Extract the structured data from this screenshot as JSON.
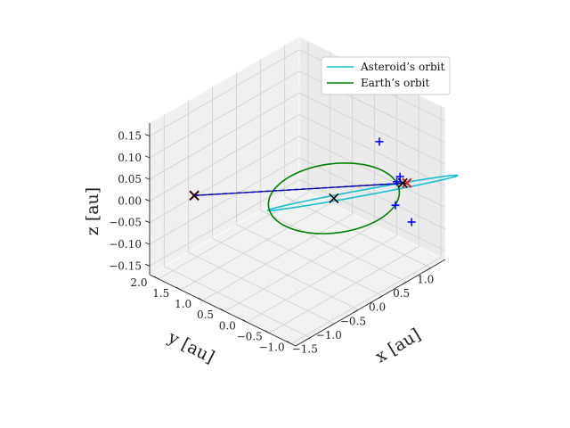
{
  "chart_data": {
    "type": "line3d",
    "title": "",
    "xlabel": "x [au]",
    "ylabel": "y [au]",
    "zlabel": "z [au]",
    "xlim": [
      -1.8,
      1.3
    ],
    "ylim": [
      -1.1,
      2.2
    ],
    "zlim": [
      -0.17,
      0.18
    ],
    "xticks": [
      "−1.5",
      "−1.0",
      "−0.5",
      "0.0",
      "0.5",
      "1.0"
    ],
    "yticks": [
      "−1.0",
      "−0.5",
      "0.0",
      "0.5",
      "1.0",
      "1.5",
      "2.0"
    ],
    "zticks": [
      "−0.15",
      "−0.10",
      "−0.05",
      "0.00",
      "0.05",
      "0.10",
      "0.15"
    ],
    "xtick_values": [
      -1.5,
      -1.0,
      -0.5,
      0.0,
      0.5,
      1.0
    ],
    "ytick_values": [
      -1.0,
      -0.5,
      0.0,
      0.5,
      1.0,
      1.5,
      2.0
    ],
    "ztick_values": [
      -0.15,
      -0.1,
      -0.05,
      0.0,
      0.05,
      0.1,
      0.15
    ],
    "grid": true,
    "legend_position": "upper-right",
    "series": [
      {
        "name": "Asteroid’s orbit",
        "kind": "ellipse",
        "color": "#17becf",
        "semi_major_axis": 1.45,
        "eccentricity": 0.31,
        "inclination_deg": 4.4,
        "perihelion_longitude_deg": 148
      },
      {
        "name": "Earth’s orbit",
        "kind": "circle",
        "color": "#008000",
        "radius": 1.0,
        "inclination_deg": 0
      }
    ],
    "line_of_nodes": {
      "color": "#0000ff",
      "style": "dashed",
      "from": [
        -1.27,
        1.77,
        0.0
      ],
      "to": [
        0.99,
        -0.57,
        0.0
      ]
    },
    "markers": {
      "red_x": [
        [
          -1.27,
          1.77,
          0.0
        ],
        [
          0.99,
          -0.57,
          0.0
        ]
      ],
      "black_x": [
        [
          -1.27,
          1.77,
          0.0
        ],
        [
          0.0,
          0.0,
          0.0
        ],
        [
          0.95,
          -0.52,
          0.0
        ]
      ],
      "blue_plus": [
        [
          0.86,
          -0.09,
          0.08
        ],
        [
          0.45,
          -0.9,
          0.0
        ],
        [
          0.95,
          -0.72,
          -0.08
        ],
        [
          1.05,
          -0.35,
          0.0
        ],
        [
          0.92,
          -0.42,
          0.0
        ]
      ]
    }
  }
}
